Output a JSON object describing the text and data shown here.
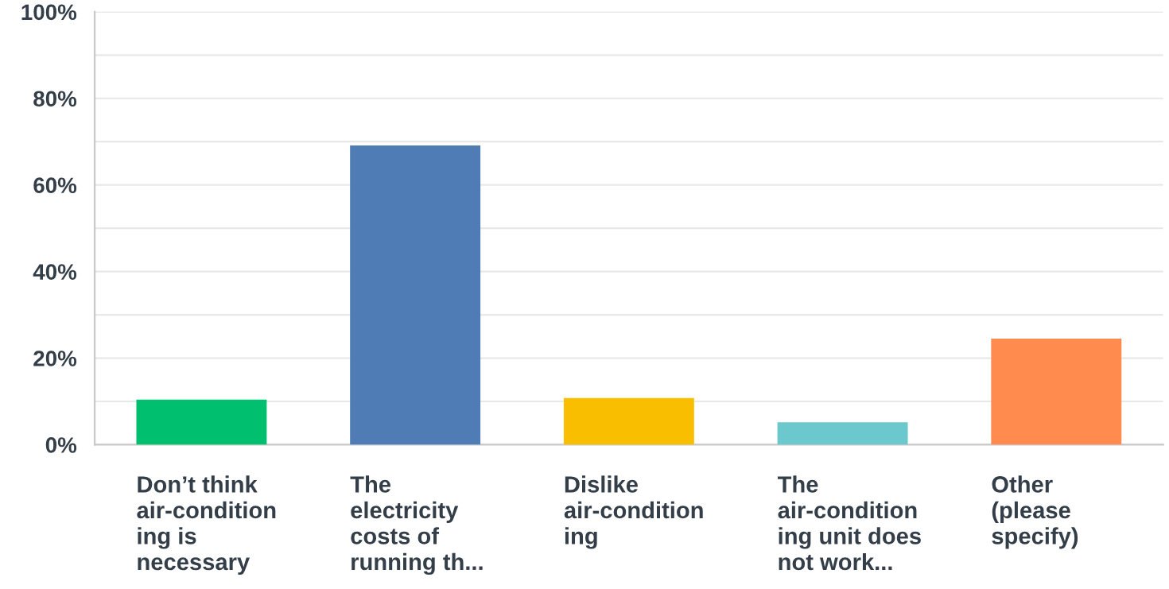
{
  "chart_data": {
    "type": "bar",
    "categories": [
      "Don’t think\nair-condition\ning is\nnecessary",
      "The\nelectricity\ncosts of\nrunning th...",
      "Dislike\nair-condition\ning",
      "The\nair-condition\ning unit does\nnot work...",
      "Other\n(please\nspecify)"
    ],
    "values": [
      10.4,
      69.1,
      10.8,
      5.2,
      24.5
    ],
    "colors": [
      "#00bf6f",
      "#507cb6",
      "#f9be00",
      "#6bc8cd",
      "#ff8b4f"
    ],
    "ylim": [
      0,
      100
    ],
    "yticks": [
      {
        "value": 0,
        "label": "0%"
      },
      {
        "value": 10,
        "label": null
      },
      {
        "value": 20,
        "label": "20%"
      },
      {
        "value": 30,
        "label": null
      },
      {
        "value": 40,
        "label": "40%"
      },
      {
        "value": 50,
        "label": null
      },
      {
        "value": 60,
        "label": "60%"
      },
      {
        "value": 70,
        "label": null
      },
      {
        "value": 80,
        "label": "80%"
      },
      {
        "value": 90,
        "label": null
      },
      {
        "value": 100,
        "label": "100%"
      }
    ],
    "grid": "y"
  }
}
